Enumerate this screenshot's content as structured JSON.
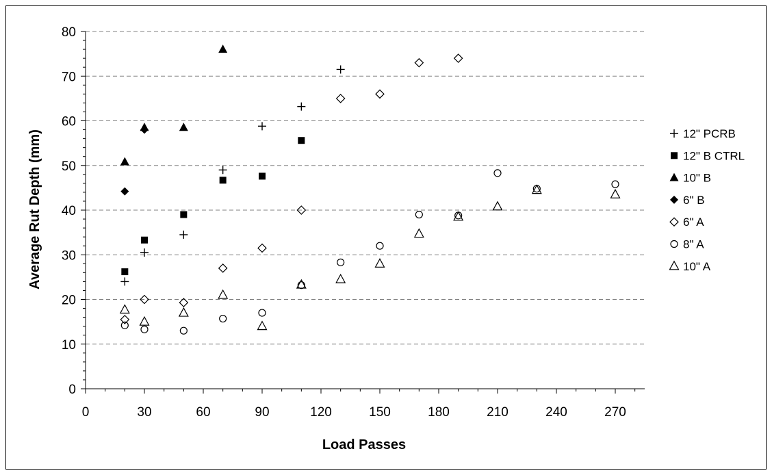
{
  "chart_data": {
    "type": "scatter",
    "title": "",
    "xlabel": "Load Passes",
    "ylabel": "Average Rut Depth (mm)",
    "xlim": [
      0,
      285
    ],
    "ylim": [
      0,
      80
    ],
    "xticks": [
      0,
      30,
      60,
      90,
      120,
      150,
      180,
      210,
      240,
      270
    ],
    "yticks": [
      0,
      10,
      20,
      30,
      40,
      50,
      60,
      70,
      80
    ],
    "grid": "horizontal dashed",
    "legend_position": "right",
    "series": [
      {
        "name": "12\" PCRB",
        "marker": "plus",
        "color": "#000000",
        "x": [
          20,
          30,
          50,
          70,
          90,
          110,
          130
        ],
        "y": [
          24,
          30.5,
          34.5,
          49,
          58.8,
          63.2,
          71.5
        ]
      },
      {
        "name": "12\"  B CTRL",
        "marker": "square",
        "color": "#000000",
        "x": [
          20,
          30,
          50,
          70,
          90,
          110
        ],
        "y": [
          26.2,
          33.3,
          39,
          46.7,
          47.6,
          55.6
        ]
      },
      {
        "name": "10\" B",
        "marker": "triangle",
        "color": "#000000",
        "x": [
          20,
          30,
          50,
          70
        ],
        "y": [
          50.8,
          58.5,
          58.5,
          76
        ]
      },
      {
        "name": "6\" B",
        "marker": "diamond",
        "color": "#000000",
        "x": [
          20,
          30
        ],
        "y": [
          44.2,
          58
        ]
      },
      {
        "name": "6\" A",
        "marker": "diamond-open",
        "color": "#000000",
        "x": [
          20,
          30,
          50,
          70,
          90,
          110,
          130,
          150,
          170,
          190
        ],
        "y": [
          15.5,
          20,
          19.3,
          27,
          31.5,
          40,
          65,
          66,
          73,
          74
        ]
      },
      {
        "name": "8\" A",
        "marker": "circle-open",
        "color": "#000000",
        "x": [
          20,
          30,
          50,
          70,
          90,
          110,
          130,
          150,
          170,
          190,
          210,
          230,
          270
        ],
        "y": [
          14.2,
          13.3,
          13,
          15.7,
          17,
          23.2,
          28.3,
          32,
          39,
          38.8,
          48.3,
          44.8,
          45.8
        ]
      },
      {
        "name": "10\" A",
        "marker": "triangle-open",
        "color": "#000000",
        "x": [
          20,
          30,
          50,
          70,
          90,
          110,
          130,
          150,
          170,
          190,
          210,
          230,
          270
        ],
        "y": [
          17.7,
          15,
          17,
          21,
          14,
          23.3,
          24.5,
          28,
          34.7,
          38.5,
          40.8,
          44.5,
          43.5
        ]
      }
    ]
  }
}
